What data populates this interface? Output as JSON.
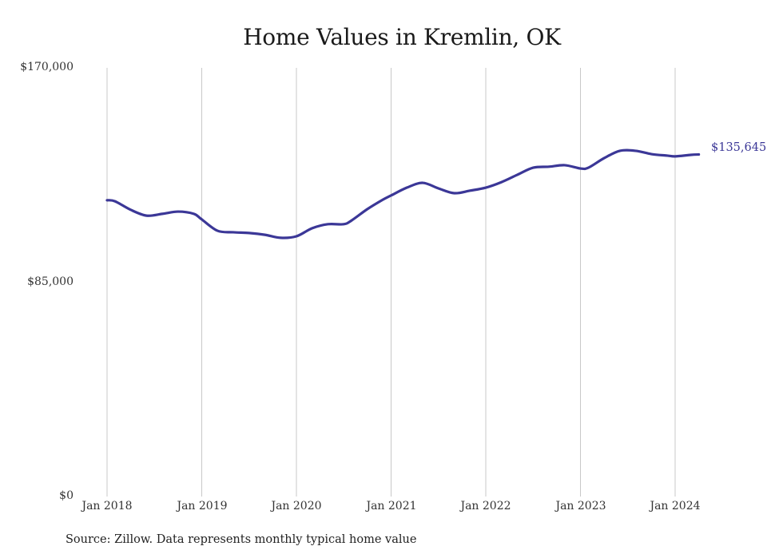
{
  "chart_data": {
    "type": "line",
    "title": "Home Values in Kremlin, OK",
    "xlabel": "",
    "ylabel": "",
    "ylim": [
      0,
      170000
    ],
    "y_ticks": [
      "$170,000",
      "$85,000",
      "$0"
    ],
    "x_ticks": [
      "Jan 2018",
      "Jan 2019",
      "Jan 2020",
      "Jan 2021",
      "Jan 2022",
      "Jan 2023",
      "Jan 2024"
    ],
    "grid": "vertical lines at each January",
    "legend": "none",
    "end_label": "$135,645",
    "line_color": "#3b3797",
    "series": [
      {
        "name": "Typical home value",
        "x": [
          "2018-01",
          "2018-02",
          "2018-04",
          "2018-06",
          "2018-08",
          "2018-10",
          "2018-12",
          "2019-01",
          "2019-03",
          "2019-05",
          "2019-07",
          "2019-09",
          "2019-11",
          "2020-01",
          "2020-03",
          "2020-05",
          "2020-07",
          "2020-08",
          "2020-10",
          "2020-12",
          "2021-01",
          "2021-03",
          "2021-05",
          "2021-07",
          "2021-09",
          "2021-11",
          "2022-01",
          "2022-03",
          "2022-05",
          "2022-07",
          "2022-09",
          "2022-11",
          "2023-01",
          "2023-02",
          "2023-04",
          "2023-06",
          "2023-08",
          "2023-10",
          "2023-12",
          "2024-01",
          "2024-03",
          "2024-04"
        ],
        "values": [
          117500,
          117100,
          113700,
          111400,
          112100,
          113000,
          112100,
          109900,
          105400,
          104800,
          104500,
          103800,
          102600,
          103200,
          106400,
          108000,
          108000,
          109500,
          114000,
          117800,
          119400,
          122500,
          124400,
          122200,
          120300,
          121300,
          122500,
          124700,
          127600,
          130400,
          130800,
          131400,
          130100,
          130400,
          134200,
          137100,
          137100,
          135800,
          135200,
          134900,
          135500,
          135645
        ]
      }
    ]
  },
  "title": "Home Values in Kremlin, OK",
  "axes": {
    "y_labels": [
      "$170,000",
      "$85,000",
      "$0"
    ],
    "x_labels": [
      "Jan 2018",
      "Jan 2019",
      "Jan 2020",
      "Jan 2021",
      "Jan 2022",
      "Jan 2023",
      "Jan 2024"
    ]
  },
  "end_label": "$135,645",
  "source": "Source: Zillow. Data represents monthly typical home value"
}
